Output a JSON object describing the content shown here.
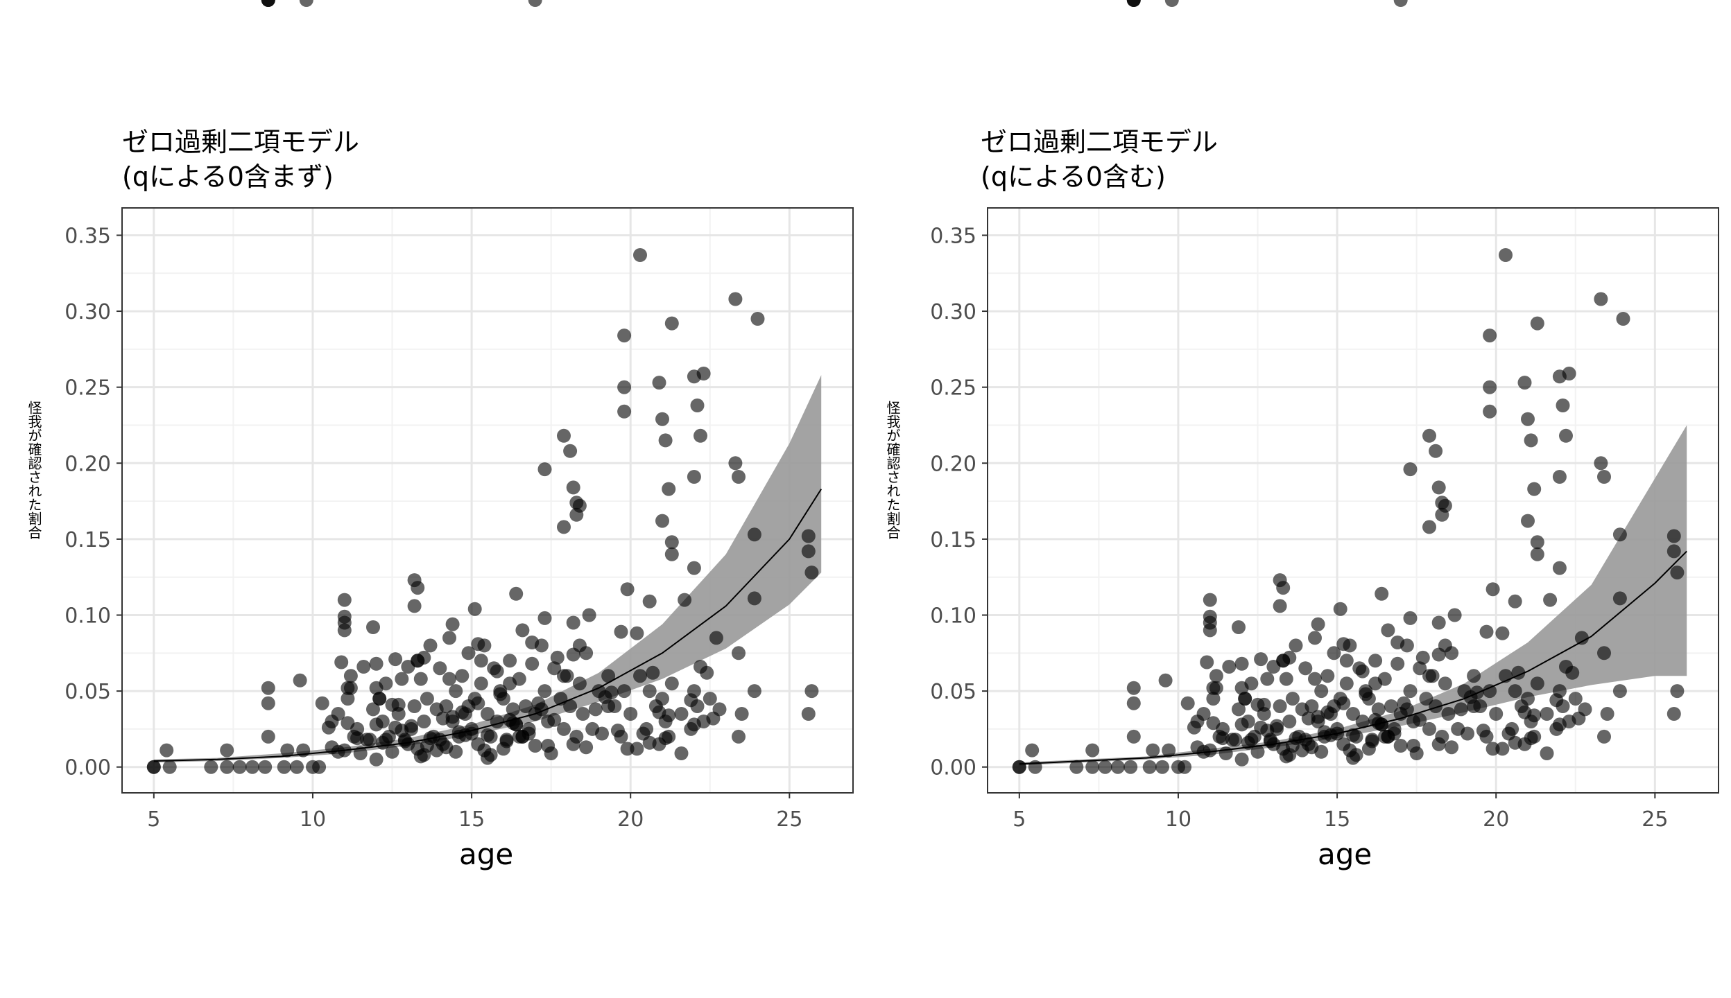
{
  "chart_data": [
    {
      "type": "scatter",
      "title": "ゼロ過剰二項モデル",
      "subtitle": "(qによる0含まず)",
      "xlabel": "age",
      "ylabel": "怪我が確認された割合",
      "xlim": [
        4,
        27
      ],
      "ylim": [
        -0.017,
        0.368
      ],
      "x_ticks": [
        5,
        10,
        15,
        20,
        25
      ],
      "y_ticks": [
        0.0,
        0.05,
        0.1,
        0.15,
        0.2,
        0.25,
        0.3,
        0.35
      ],
      "x_tick_labels": [
        "5",
        "10",
        "15",
        "20",
        "25"
      ],
      "y_tick_labels": [
        "0.00",
        "0.05",
        "0.10",
        "0.15",
        "0.20",
        "0.25",
        "0.30",
        "0.35"
      ],
      "grid": true,
      "point_color": "#000000",
      "point_opacity": 0.6,
      "ribbon_color": "#999999",
      "fit_line": {
        "x": [
          5,
          7,
          9,
          11,
          13,
          15,
          17,
          19,
          21,
          23,
          25,
          26
        ],
        "y": [
          0.004,
          0.005,
          0.007,
          0.011,
          0.016,
          0.024,
          0.035,
          0.052,
          0.075,
          0.106,
          0.15,
          0.183
        ],
        "lower": [
          0.003,
          0.004,
          0.006,
          0.009,
          0.014,
          0.021,
          0.03,
          0.043,
          0.058,
          0.078,
          0.107,
          0.128
        ],
        "upper": [
          0.005,
          0.006,
          0.009,
          0.013,
          0.019,
          0.028,
          0.041,
          0.062,
          0.094,
          0.14,
          0.213,
          0.258
        ]
      }
    },
    {
      "type": "scatter",
      "title": "ゼロ過剰二項モデル",
      "subtitle": "(qによる0含む)",
      "xlabel": "age",
      "ylabel": "怪我が確認された割合",
      "xlim": [
        4,
        27
      ],
      "ylim": [
        -0.017,
        0.368
      ],
      "x_ticks": [
        5,
        10,
        15,
        20,
        25
      ],
      "y_ticks": [
        0.0,
        0.05,
        0.1,
        0.15,
        0.2,
        0.25,
        0.3,
        0.35
      ],
      "x_tick_labels": [
        "5",
        "10",
        "15",
        "20",
        "25"
      ],
      "y_tick_labels": [
        "0.00",
        "0.05",
        "0.10",
        "0.15",
        "0.20",
        "0.25",
        "0.30",
        "0.35"
      ],
      "grid": true,
      "point_color": "#000000",
      "point_opacity": 0.6,
      "ribbon_color": "#999999",
      "fit_line": {
        "x": [
          5,
          7,
          9,
          11,
          13,
          15,
          17,
          19,
          21,
          23,
          25,
          26
        ],
        "y": [
          0.002,
          0.004,
          0.006,
          0.01,
          0.015,
          0.022,
          0.032,
          0.045,
          0.063,
          0.086,
          0.121,
          0.142
        ],
        "lower": [
          0.001,
          0.003,
          0.005,
          0.008,
          0.013,
          0.019,
          0.027,
          0.036,
          0.046,
          0.054,
          0.06,
          0.06
        ],
        "upper": [
          0.003,
          0.005,
          0.007,
          0.012,
          0.017,
          0.025,
          0.037,
          0.055,
          0.082,
          0.12,
          0.19,
          0.225
        ]
      }
    }
  ],
  "points": {
    "age": [
      5.0,
      5.0,
      5.5,
      5.4,
      6.8,
      7.3,
      7.3,
      7.7,
      8.1,
      8.5,
      8.6,
      8.6,
      8.6,
      9.1,
      9.2,
      9.5,
      9.6,
      9.7,
      10.0,
      10.2,
      10.3,
      10.5,
      10.6,
      10.8,
      10.9,
      11.0,
      11.0,
      11.1,
      11.1,
      11.2,
      11.3,
      11.4,
      11.6,
      11.8,
      11.9,
      12.0,
      12.0,
      12.1,
      12.2,
      12.3,
      12.4,
      12.5,
      12.6,
      12.7,
      12.8,
      12.9,
      13.0,
      13.1,
      13.2,
      13.3,
      13.3,
      13.4,
      13.5,
      13.6,
      13.7,
      13.8,
      13.9,
      14.0,
      14.1,
      14.2,
      14.3,
      14.4,
      14.5,
      14.6,
      14.7,
      14.8,
      14.9,
      15.0,
      15.1,
      15.2,
      15.3,
      15.4,
      15.5,
      15.6,
      15.7,
      15.8,
      15.9,
      16.0,
      16.1,
      16.2,
      16.3,
      16.4,
      16.5,
      16.6,
      16.7,
      16.8,
      16.9,
      17.0,
      17.2,
      17.3,
      17.4,
      17.6,
      17.8,
      17.9,
      18.0,
      18.1,
      18.2,
      18.3,
      18.4,
      18.5,
      18.6,
      18.8,
      19.0,
      19.3,
      19.5,
      19.7,
      19.8,
      19.9,
      20.0,
      20.3,
      20.5,
      20.6,
      20.8,
      20.9,
      21.0,
      21.1,
      21.2,
      21.3,
      21.6,
      21.9,
      22.0,
      22.1,
      22.3,
      22.5,
      22.8,
      23.4,
      23.5,
      23.9,
      25.6,
      25.7,
      12.0,
      12.5,
      13.0,
      13.5,
      14.0,
      14.5,
      15.0,
      15.5,
      16.0,
      16.5,
      17.0,
      11.5,
      12.2,
      12.8,
      13.4,
      14.2,
      14.8,
      15.4,
      16.1,
      16.8,
      17.5,
      18.2,
      19.1,
      20.2,
      21.1,
      22.0,
      10.8,
      11.7,
      12.6,
      13.6,
      14.6,
      15.6,
      16.6,
      17.6,
      18.6,
      19.6,
      20.6,
      21.6,
      22.6,
      12.3,
      13.1,
      13.9,
      14.7,
      15.5,
      16.3,
      17.1,
      11.4,
      12.9,
      14.4,
      15.9,
      17.4,
      18.9,
      20.4,
      21.9,
      10.6,
      11.2,
      13.7,
      14.9,
      16.4,
      17.9,
      19.4,
      20.9,
      22.4,
      23.4,
      12.1,
      13.3,
      14.1,
      15.2,
      16.2,
      17.2,
      18.2,
      19.2,
      20.2,
      21.2,
      22.2,
      11.1,
      11.9,
      12.7,
      13.5,
      14.3,
      15.1,
      15.8,
      16.9,
      17.7,
      18.7,
      19.7,
      20.7,
      21.7,
      22.7,
      13.2,
      14.4,
      15.3,
      16.4,
      17.3,
      18.4,
      19.3,
      20.3,
      21.3,
      22.3,
      23.3,
      24.0,
      19.8,
      19.8,
      19.8,
      20.9,
      21.0,
      21.0,
      21.1,
      21.2,
      21.3,
      21.3,
      17.3,
      18.3,
      17.9,
      17.9,
      18.1,
      18.2,
      18.3,
      18.4,
      22.0,
      22.0,
      22.0,
      22.1,
      22.2,
      23.3,
      23.4,
      23.9,
      23.9,
      25.6,
      25.6,
      25.7,
      19.9,
      20.6,
      13.2,
      13.3,
      11.0,
      11.0,
      11.0,
      12.0,
      15.2,
      16.6,
      16.2,
      17.0,
      8.6,
      8.6,
      8.6,
      9.8
    ],
    "rate": [
      0,
      0,
      0,
      0.011,
      0,
      0,
      0.011,
      0,
      0,
      0,
      0.02,
      0.042,
      0.052,
      0,
      0.011,
      0,
      0.057,
      0.011,
      0,
      0,
      0.042,
      0.026,
      0.013,
      0.035,
      0.069,
      0.095,
      0.011,
      0.045,
      0.029,
      0.06,
      0.02,
      0.019,
      0.066,
      0.018,
      0.038,
      0.028,
      0.068,
      0.045,
      0.03,
      0.055,
      0.02,
      0.041,
      0.071,
      0.035,
      0.058,
      0.018,
      0.066,
      0.025,
      0.04,
      0.07,
      0.012,
      0.058,
      0.03,
      0.045,
      0.08,
      0.02,
      0.038,
      0.065,
      0.015,
      0.04,
      0.085,
      0.03,
      0.05,
      0.02,
      0.06,
      0.035,
      0.075,
      0.025,
      0.045,
      0.015,
      0.055,
      0.08,
      0.035,
      0.02,
      0.065,
      0.03,
      0.05,
      0.045,
      0.018,
      0.07,
      0.038,
      0.028,
      0.058,
      0.09,
      0.04,
      0.022,
      0.068,
      0.035,
      0.08,
      0.05,
      0.03,
      0.065,
      0.045,
      0.025,
      0.06,
      0.04,
      0.095,
      0.02,
      0.055,
      0.035,
      0.075,
      0.025,
      0.05,
      0.06,
      0.04,
      0.02,
      0.05,
      0.012,
      0.035,
      0.06,
      0.025,
      0.05,
      0.04,
      0.015,
      0.045,
      0.03,
      0.02,
      0.055,
      0.035,
      0.025,
      0.05,
      0.04,
      0.03,
      0.045,
      0.038,
      0.075,
      0.035,
      0.05,
      0.035,
      0.05,
      0.005,
      0.01,
      0.015,
      0.008,
      0.018,
      0.01,
      0.022,
      0.006,
      0.012,
      0.02,
      0.014,
      0.009,
      0.016,
      0.024,
      0.007,
      0.013,
      0.021,
      0.011,
      0.017,
      0.025,
      0.009,
      0.015,
      0.022,
      0.012,
      0.019,
      0.028,
      0.01,
      0.018,
      0.026,
      0.014,
      0.023,
      0.008,
      0.02,
      0.031,
      0.013,
      0.024,
      0.016,
      0.009,
      0.032,
      0.018,
      0.027,
      0.011,
      0.036,
      0.021,
      0.029,
      0.042,
      0.025,
      0.017,
      0.033,
      0.048,
      0.014,
      0.038,
      0.022,
      0.044,
      0.03,
      0.052,
      0.019,
      0.04,
      0.028,
      0.06,
      0.049,
      0.036,
      0.062,
      0.02,
      0.045,
      0.07,
      0.032,
      0.081,
      0.055,
      0.038,
      0.074,
      0.046,
      0.088,
      0.034,
      0.066,
      0.052,
      0.092,
      0.041,
      0.072,
      0.058,
      0.104,
      0.063,
      0.082,
      0.072,
      0.1,
      0.089,
      0.062,
      0.11,
      0.085,
      0.123,
      0.094,
      0.07,
      0.114,
      0.098,
      0.08,
      0.04,
      0.337,
      0.292,
      0.259,
      0.308,
      0.295,
      0.284,
      0.234,
      0.25,
      0.253,
      0.162,
      0.229,
      0.215,
      0.183,
      0.148,
      0.14,
      0.196,
      0.174,
      0.158,
      0.218,
      0.208,
      0.184,
      0.166,
      0.172,
      0.191,
      0.131,
      0.257,
      0.238,
      0.218,
      0.2,
      0.191,
      0.153,
      0.111,
      0.152,
      0.142,
      0.128,
      0.117,
      0.109,
      0.106,
      0.118,
      0.11,
      0.099,
      0.09,
      0.052,
      0.042,
      0.02,
      0.031
    ]
  }
}
